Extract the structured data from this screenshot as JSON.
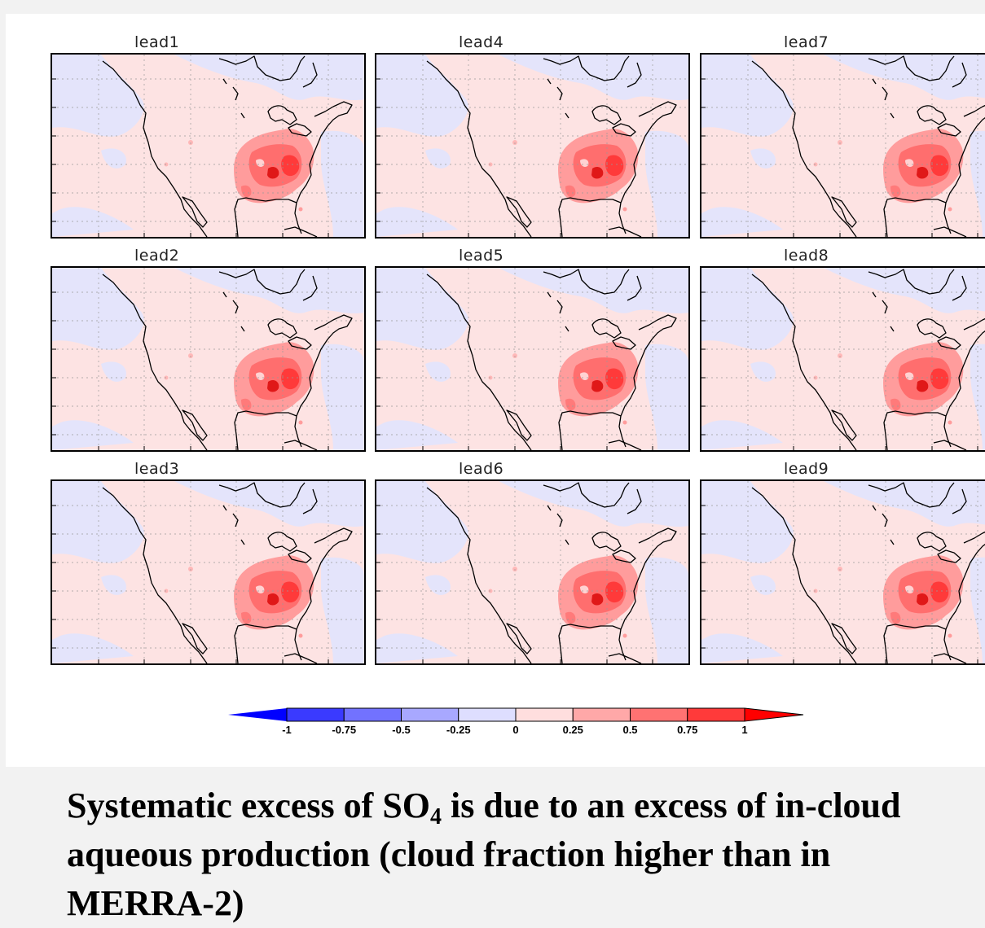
{
  "panels": [
    {
      "title": "lead1"
    },
    {
      "title": "lead4"
    },
    {
      "title": "lead7"
    },
    {
      "title": "lead2"
    },
    {
      "title": "lead5"
    },
    {
      "title": "lead8"
    },
    {
      "title": "lead3"
    },
    {
      "title": "lead6"
    },
    {
      "title": "lead9"
    }
  ],
  "colorbar": {
    "labels": [
      "-1",
      "-0.75",
      "-0.5",
      "-0.25",
      "0",
      "0.25",
      "0.5",
      "0.75",
      "1"
    ],
    "colors": [
      "#0000ff",
      "#3a3aff",
      "#7272ff",
      "#a8a8ff",
      "#dedeff",
      "#ffdede",
      "#ffa8a8",
      "#ff7272",
      "#ff3a3a",
      "#ff0000"
    ]
  },
  "caption": {
    "part1": "Systematic excess of SO",
    "sub": "4",
    "part2": " is due to an excess of in-cloud",
    "line2": "aqueous production (cloud fraction higher than in",
    "line3": "MERRA-2)"
  }
}
